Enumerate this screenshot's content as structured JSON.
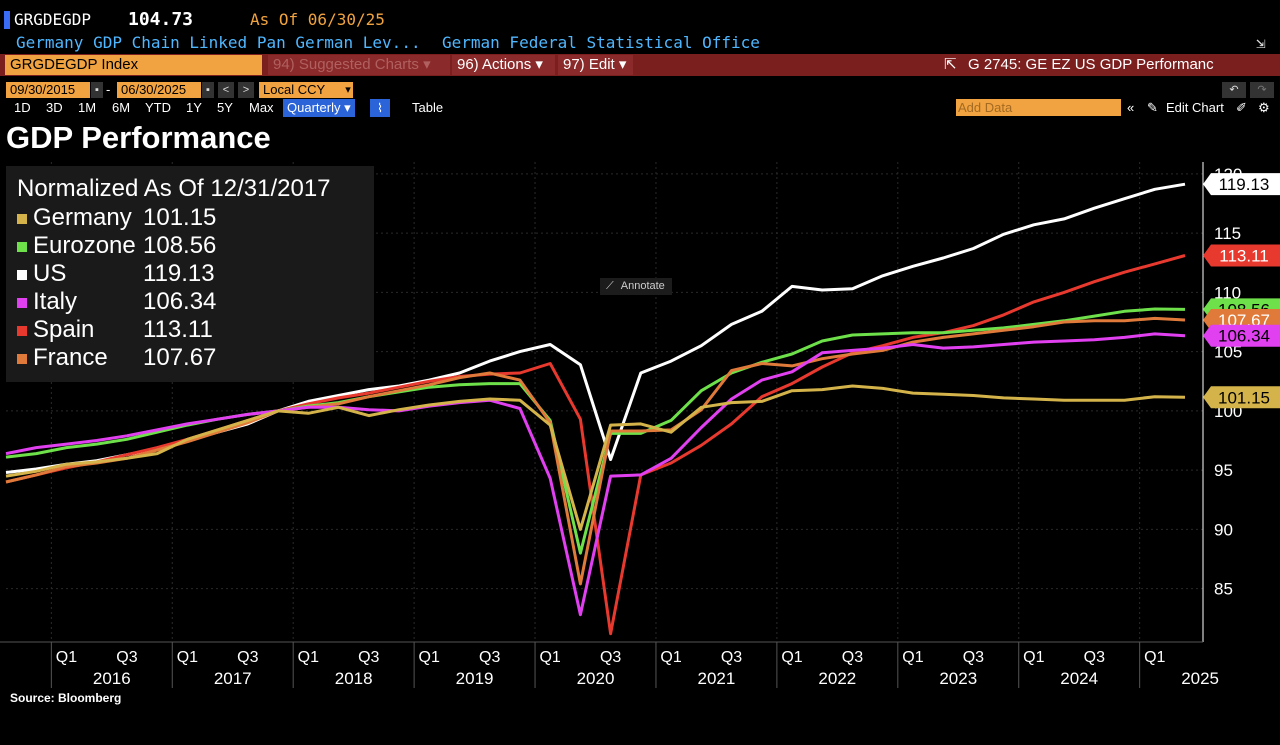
{
  "header": {
    "symbol": "GRGDEGDP",
    "last_value": "104.73",
    "as_of": "As Of  06/30/25",
    "description": "Germany GDP Chain Linked Pan German Lev...",
    "source": "German Federal Statistical Office"
  },
  "toolbar": {
    "ticker": "GRGDEGDP Index",
    "suggested": "94) Suggested Charts",
    "actions": "96) Actions",
    "edit": "97) Edit",
    "graph_title": "G 2745: GE EZ US GDP Performanc"
  },
  "dates": {
    "start": "09/30/2015",
    "end": "06/30/2025",
    "currency": "Local CCY"
  },
  "periods": [
    "1D",
    "3D",
    "1M",
    "6M",
    "YTD",
    "1Y",
    "5Y",
    "Max"
  ],
  "frequency": "Quarterly",
  "table_label": "Table",
  "add_data_placeholder": "Add Data",
  "edit_chart_label": "Edit Chart",
  "annotate_label": "Annotate",
  "page_title": "GDP Performance",
  "legend": {
    "heading": "Normalized As Of 12/31/2017",
    "items": [
      {
        "name": "Germany",
        "value": "101.15",
        "color": "#d4b44a"
      },
      {
        "name": "Eurozone",
        "value": "108.56",
        "color": "#6de04a"
      },
      {
        "name": "US",
        "value": "119.13",
        "color": "#ffffff"
      },
      {
        "name": "Italy",
        "value": "106.34",
        "color": "#e040f0"
      },
      {
        "name": "Spain",
        "value": "113.11",
        "color": "#e8392f"
      },
      {
        "name": "France",
        "value": "107.67",
        "color": "#e07a3a"
      }
    ]
  },
  "source_note": "Source: Bloomberg",
  "chart_data": {
    "type": "line",
    "title": "GDP Performance",
    "subtitle": "Normalized As Of 12/31/2017",
    "ylim": [
      80.5,
      121
    ],
    "y_ticks": [
      85,
      90,
      95,
      100,
      105,
      110,
      115,
      120
    ],
    "x_quarter_labels": [
      "Q1",
      "Q3"
    ],
    "x_year_labels": [
      "2016",
      "2017",
      "2018",
      "2019",
      "2020",
      "2021",
      "2022",
      "2023",
      "2024",
      "2025"
    ],
    "x": [
      "2015-Q3",
      "2015-Q4",
      "2016-Q1",
      "2016-Q2",
      "2016-Q3",
      "2016-Q4",
      "2017-Q1",
      "2017-Q2",
      "2017-Q3",
      "2017-Q4",
      "2018-Q1",
      "2018-Q2",
      "2018-Q3",
      "2018-Q4",
      "2019-Q1",
      "2019-Q2",
      "2019-Q3",
      "2019-Q4",
      "2020-Q1",
      "2020-Q2",
      "2020-Q3",
      "2020-Q4",
      "2021-Q1",
      "2021-Q2",
      "2021-Q3",
      "2021-Q4",
      "2022-Q1",
      "2022-Q2",
      "2022-Q3",
      "2022-Q4",
      "2023-Q1",
      "2023-Q2",
      "2023-Q3",
      "2023-Q4",
      "2024-Q1",
      "2024-Q2",
      "2024-Q3",
      "2024-Q4",
      "2025-Q1",
      "2025-Q2"
    ],
    "series": [
      {
        "name": "US",
        "color": "#ffffff",
        "last": "119.13",
        "values": [
          94.8,
          95.1,
          95.5,
          95.8,
          96.3,
          96.8,
          97.5,
          98.2,
          98.9,
          100,
          100.8,
          101.3,
          101.8,
          102.1,
          102.6,
          103.2,
          104.2,
          105,
          105.6,
          103.9,
          95.9,
          103.2,
          104.2,
          105.5,
          107.3,
          108.4,
          110.5,
          110.2,
          110.3,
          111.4,
          112.2,
          112.9,
          113.7,
          114.9,
          115.7,
          116.2,
          117.1,
          117.9,
          118.7,
          119.13
        ]
      },
      {
        "name": "Spain",
        "color": "#e8392f",
        "last": "113.11",
        "values": [
          94.0,
          94.6,
          95.2,
          95.7,
          96.3,
          96.9,
          97.6,
          98.4,
          99.2,
          100,
          100.6,
          101.1,
          101.5,
          102.0,
          102.5,
          102.9,
          103.1,
          103.2,
          104.0,
          99.3,
          81.2,
          94.6,
          95.6,
          97.1,
          98.9,
          101.2,
          102.3,
          103.7,
          104.9,
          105.5,
          106.2,
          106.6,
          107.2,
          108.1,
          109.2,
          110.0,
          110.9,
          111.7,
          112.4,
          113.11
        ]
      },
      {
        "name": "Eurozone",
        "color": "#6de04a",
        "last": "108.56",
        "values": [
          96.1,
          96.4,
          96.9,
          97.2,
          97.6,
          98.2,
          98.8,
          99.3,
          99.7,
          100,
          100.4,
          100.7,
          101.2,
          101.6,
          102.0,
          102.2,
          102.3,
          102.3,
          99.2,
          88.0,
          98.1,
          98.1,
          99.2,
          101.7,
          103.2,
          104.1,
          104.8,
          105.9,
          106.4,
          106.5,
          106.6,
          106.6,
          106.8,
          107.0,
          107.3,
          107.6,
          108.0,
          108.4,
          108.6,
          108.56
        ]
      },
      {
        "name": "France",
        "color": "#e07a3a",
        "last": "107.67",
        "values": [
          94.0,
          94.6,
          95.3,
          95.6,
          96.0,
          96.7,
          97.4,
          98.2,
          99.0,
          100,
          100.3,
          100.6,
          101.2,
          101.7,
          102.2,
          102.8,
          103.2,
          102.6,
          99.0,
          85.4,
          98.3,
          98.3,
          98.4,
          100.1,
          103.4,
          104.0,
          103.8,
          104.4,
          104.8,
          105.1,
          105.8,
          106.2,
          106.5,
          106.8,
          107.1,
          107.5,
          107.6,
          107.6,
          107.8,
          107.67
        ]
      },
      {
        "name": "Italy",
        "color": "#e040f0",
        "last": "106.34",
        "values": [
          96.4,
          96.9,
          97.2,
          97.5,
          97.9,
          98.4,
          98.9,
          99.3,
          99.7,
          100,
          100.3,
          100.3,
          100.1,
          100.0,
          100.4,
          100.7,
          100.9,
          100.2,
          94.3,
          82.8,
          94.5,
          94.6,
          96.0,
          98.6,
          101.0,
          102.6,
          103.3,
          104.9,
          105.1,
          105.3,
          105.6,
          105.3,
          105.4,
          105.6,
          105.8,
          105.9,
          106.0,
          106.2,
          106.5,
          106.34
        ]
      },
      {
        "name": "Germany",
        "color": "#d4b44a",
        "last": "101.15",
        "values": [
          94.5,
          94.9,
          95.5,
          95.7,
          96.0,
          96.4,
          97.6,
          98.4,
          99.2,
          100,
          99.8,
          100.3,
          99.6,
          100.1,
          100.5,
          100.8,
          101.0,
          100.9,
          98.8,
          90.0,
          98.8,
          98.9,
          98.2,
          100.3,
          100.7,
          100.8,
          101.7,
          101.8,
          102.1,
          101.9,
          101.5,
          101.4,
          101.3,
          101.1,
          101.0,
          100.9,
          100.9,
          100.9,
          101.2,
          101.15
        ]
      }
    ]
  }
}
